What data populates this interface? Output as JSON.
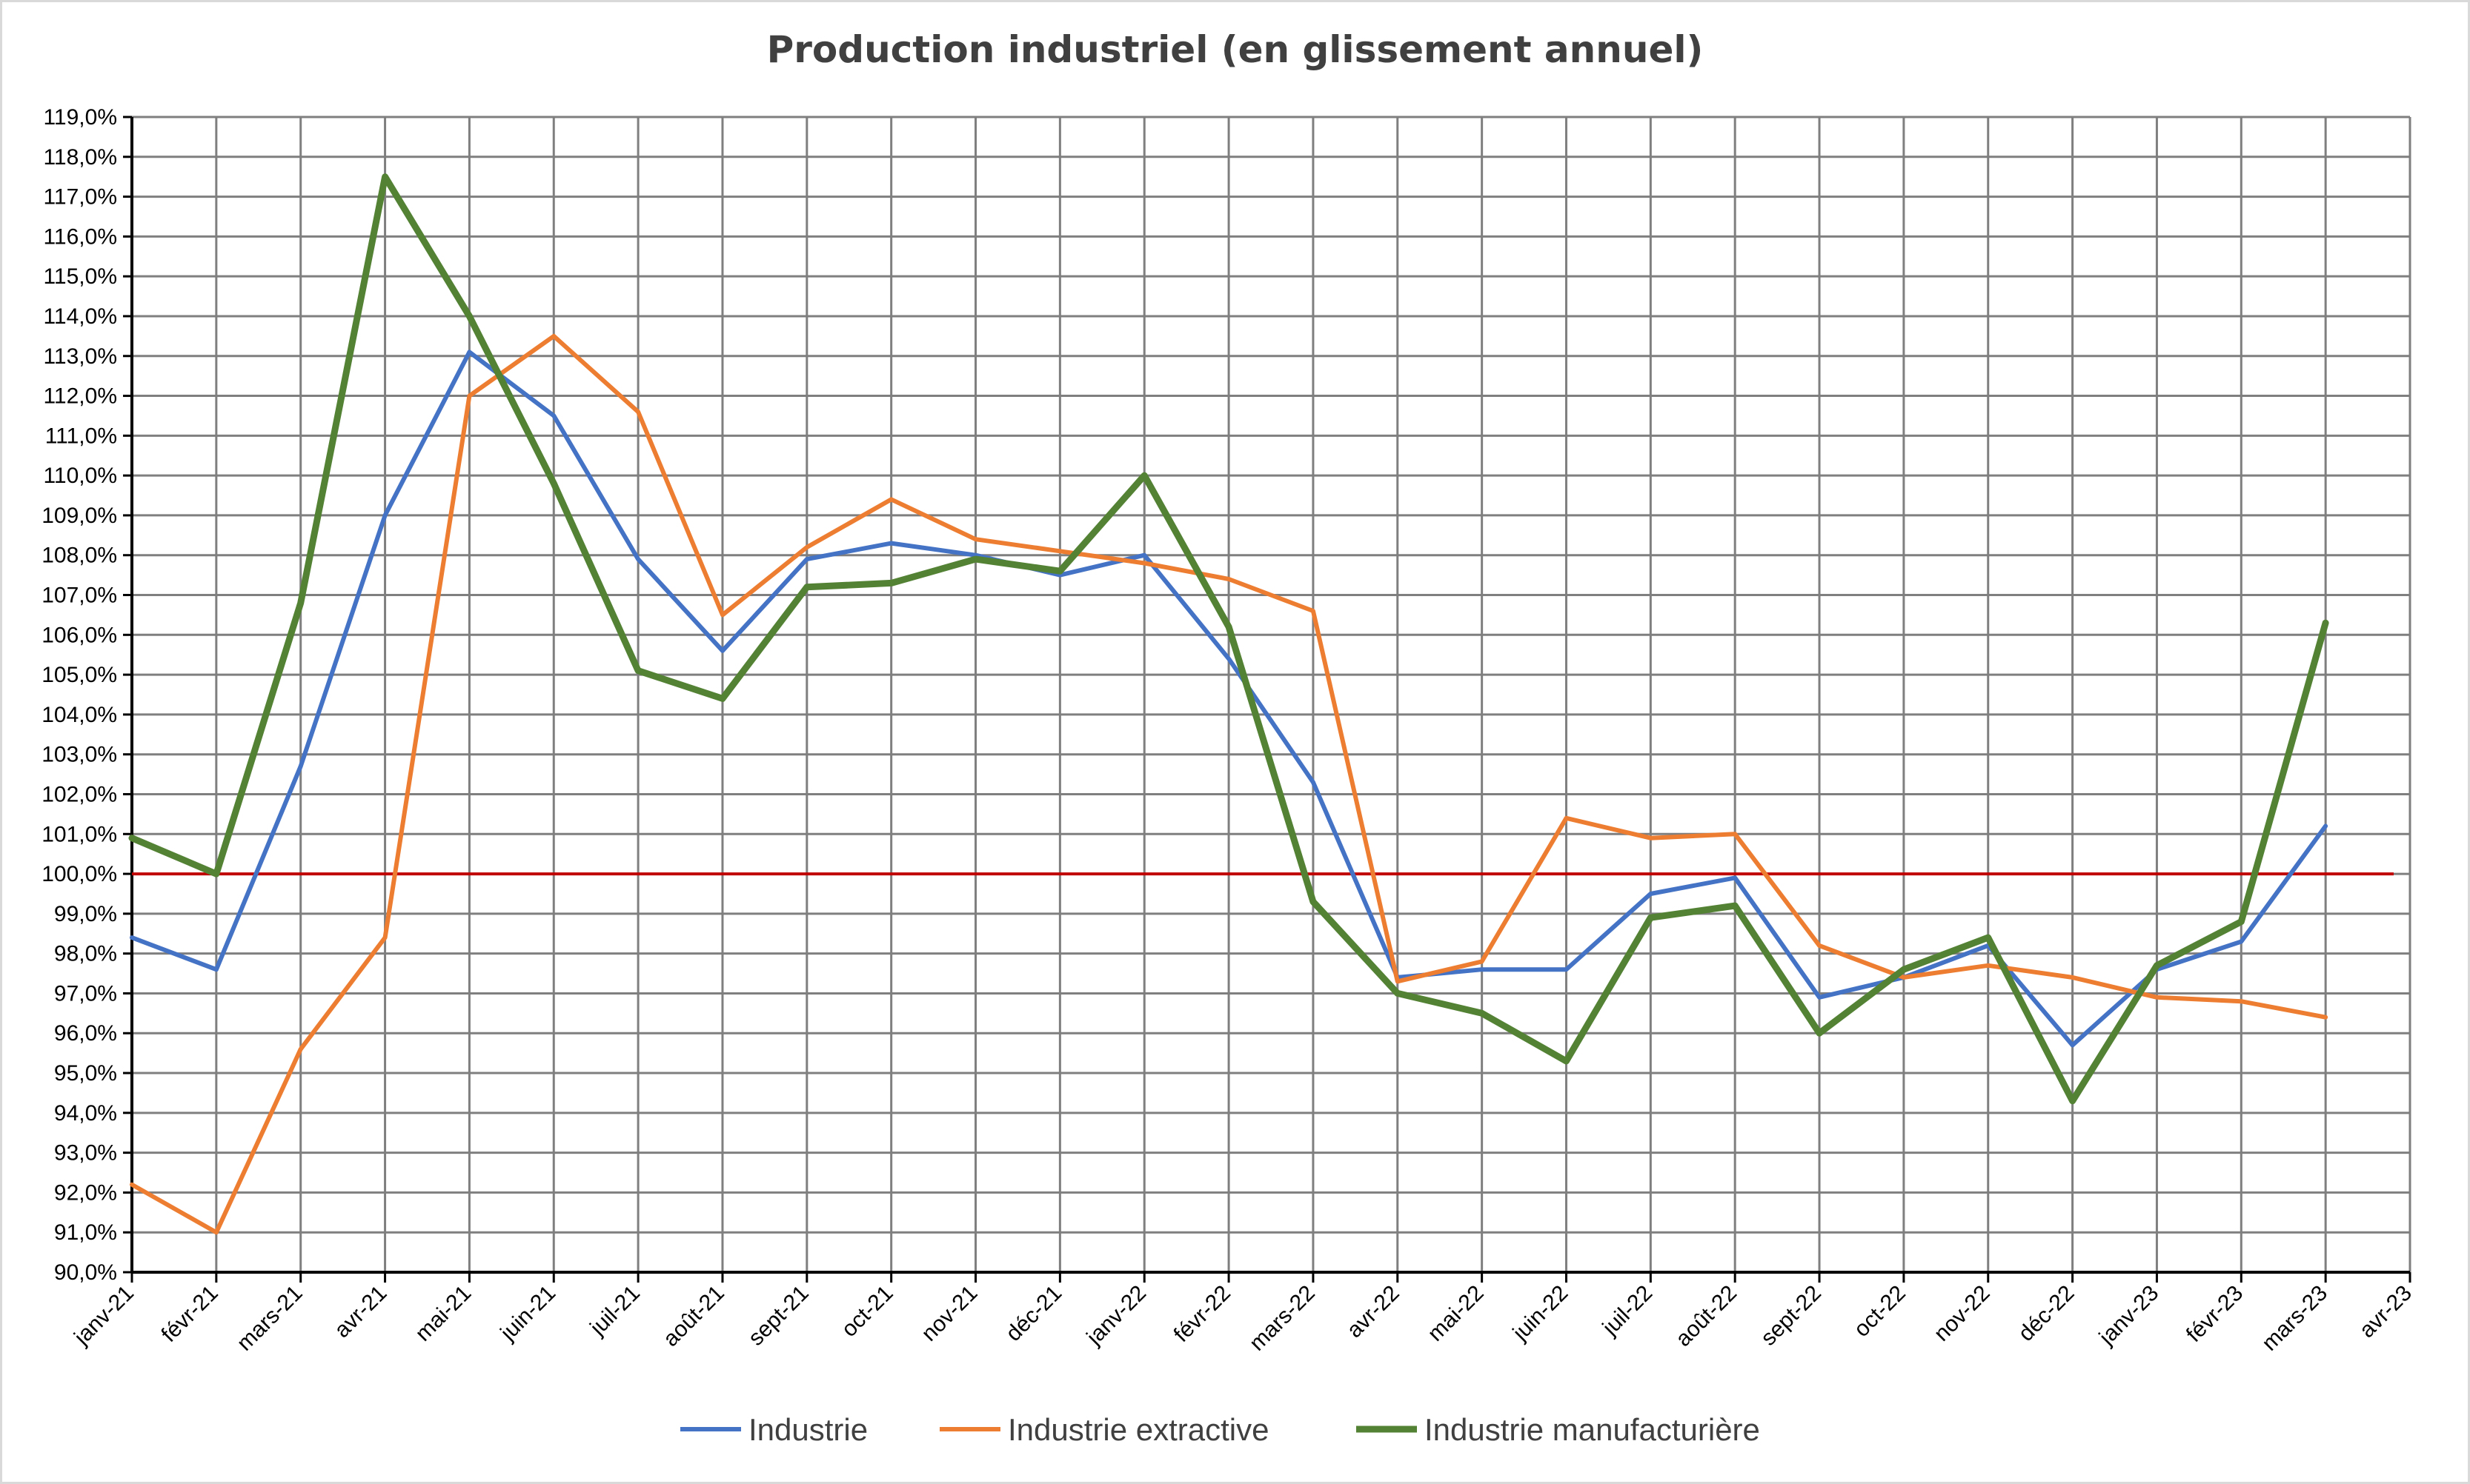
{
  "chart_data": {
    "type": "line",
    "title": "Production industriel (en glissement annuel)",
    "ylim": [
      0.9,
      1.19
    ],
    "ytick_step": 0.01,
    "y_tick_labels": [
      "90,0%",
      "91,0%",
      "92,0%",
      "93,0%",
      "94,0%",
      "95,0%",
      "96,0%",
      "97,0%",
      "98,0%",
      "99,0%",
      "100,0%",
      "101,0%",
      "102,0%",
      "103,0%",
      "104,0%",
      "105,0%",
      "106,0%",
      "107,0%",
      "108,0%",
      "109,0%",
      "110,0%",
      "111,0%",
      "112,0%",
      "113,0%",
      "114,0%",
      "115,0%",
      "116,0%",
      "117,0%",
      "118,0%",
      "119,0%"
    ],
    "x_tick_labels": [
      "janv-21",
      "févr-21",
      "mars-21",
      "avr-21",
      "mai-21",
      "juin-21",
      "juil-21",
      "août-21",
      "sept-21",
      "oct-21",
      "nov-21",
      "déc-21",
      "janv-22",
      "févr-22",
      "mars-22",
      "avr-22",
      "mai-22",
      "juin-22",
      "juil-22",
      "août-22",
      "sept-22",
      "oct-22",
      "nov-22",
      "déc-22",
      "janv-23",
      "févr-23",
      "mars-23",
      "avr-23"
    ],
    "reference_line": {
      "value": 1.0,
      "color": "#c00000"
    },
    "grid": true,
    "legend_position": "bottom",
    "series": [
      {
        "name": "Industrie",
        "color": "#4472c4",
        "x": [
          "2021-01-01",
          "2021-02-01",
          "2021-03-01",
          "2021-04-01",
          "2021-05-01",
          "2021-06-01",
          "2021-07-01",
          "2021-08-01",
          "2021-09-01",
          "2021-10-01",
          "2021-11-01",
          "2021-12-01",
          "2022-01-01",
          "2022-02-01",
          "2022-03-01",
          "2022-04-01",
          "2022-05-01",
          "2022-06-01",
          "2022-07-01",
          "2022-08-01",
          "2022-09-01",
          "2022-10-01",
          "2022-11-01",
          "2022-12-01",
          "2023-01-01",
          "2023-02-01",
          "2023-03-01"
        ],
        "values": [
          0.984,
          0.976,
          1.027,
          1.09,
          1.131,
          1.115,
          1.079,
          1.056,
          1.079,
          1.083,
          1.08,
          1.075,
          1.08,
          1.054,
          1.023,
          0.974,
          0.976,
          0.976,
          0.995,
          0.999,
          0.969,
          0.974,
          0.982,
          0.957,
          0.976,
          0.983,
          1.012
        ]
      },
      {
        "name": "Industrie extractive",
        "color": "#ed7d31",
        "x": [
          "2021-01-01",
          "2021-02-01",
          "2021-03-01",
          "2021-04-01",
          "2021-05-01",
          "2021-06-01",
          "2021-07-01",
          "2021-08-01",
          "2021-09-01",
          "2021-10-01",
          "2021-11-01",
          "2021-12-01",
          "2022-01-01",
          "2022-02-01",
          "2022-03-01",
          "2022-04-01",
          "2022-05-01",
          "2022-06-01",
          "2022-07-01",
          "2022-08-01",
          "2022-09-01",
          "2022-10-01",
          "2022-11-01",
          "2022-12-01",
          "2023-01-01",
          "2023-02-01",
          "2023-03-01"
        ],
        "values": [
          0.922,
          0.91,
          0.956,
          0.984,
          1.12,
          1.135,
          1.116,
          1.065,
          1.082,
          1.094,
          1.084,
          1.081,
          1.078,
          1.074,
          1.066,
          0.973,
          0.978,
          1.014,
          1.009,
          1.01,
          0.982,
          0.974,
          0.977,
          0.974,
          0.969,
          0.968,
          0.964
        ]
      },
      {
        "name": "Industrie manufacturière",
        "color": "#548235",
        "x": [
          "2021-01-01",
          "2021-02-01",
          "2021-03-01",
          "2021-04-01",
          "2021-05-01",
          "2021-06-01",
          "2021-07-01",
          "2021-08-01",
          "2021-09-01",
          "2021-10-01",
          "2021-11-01",
          "2021-12-01",
          "2022-01-01",
          "2022-02-01",
          "2022-03-01",
          "2022-04-01",
          "2022-05-01",
          "2022-06-01",
          "2022-07-01",
          "2022-08-01",
          "2022-09-01",
          "2022-10-01",
          "2022-11-01",
          "2022-12-01",
          "2023-01-01",
          "2023-02-01",
          "2023-03-01"
        ],
        "values": [
          1.009,
          1.0,
          1.068,
          1.175,
          1.14,
          1.098,
          1.051,
          1.044,
          1.072,
          1.073,
          1.079,
          1.076,
          1.1,
          1.062,
          0.993,
          0.97,
          0.965,
          0.953,
          0.989,
          0.992,
          0.96,
          0.976,
          0.984,
          0.943,
          0.977,
          0.988,
          1.063
        ]
      }
    ]
  }
}
